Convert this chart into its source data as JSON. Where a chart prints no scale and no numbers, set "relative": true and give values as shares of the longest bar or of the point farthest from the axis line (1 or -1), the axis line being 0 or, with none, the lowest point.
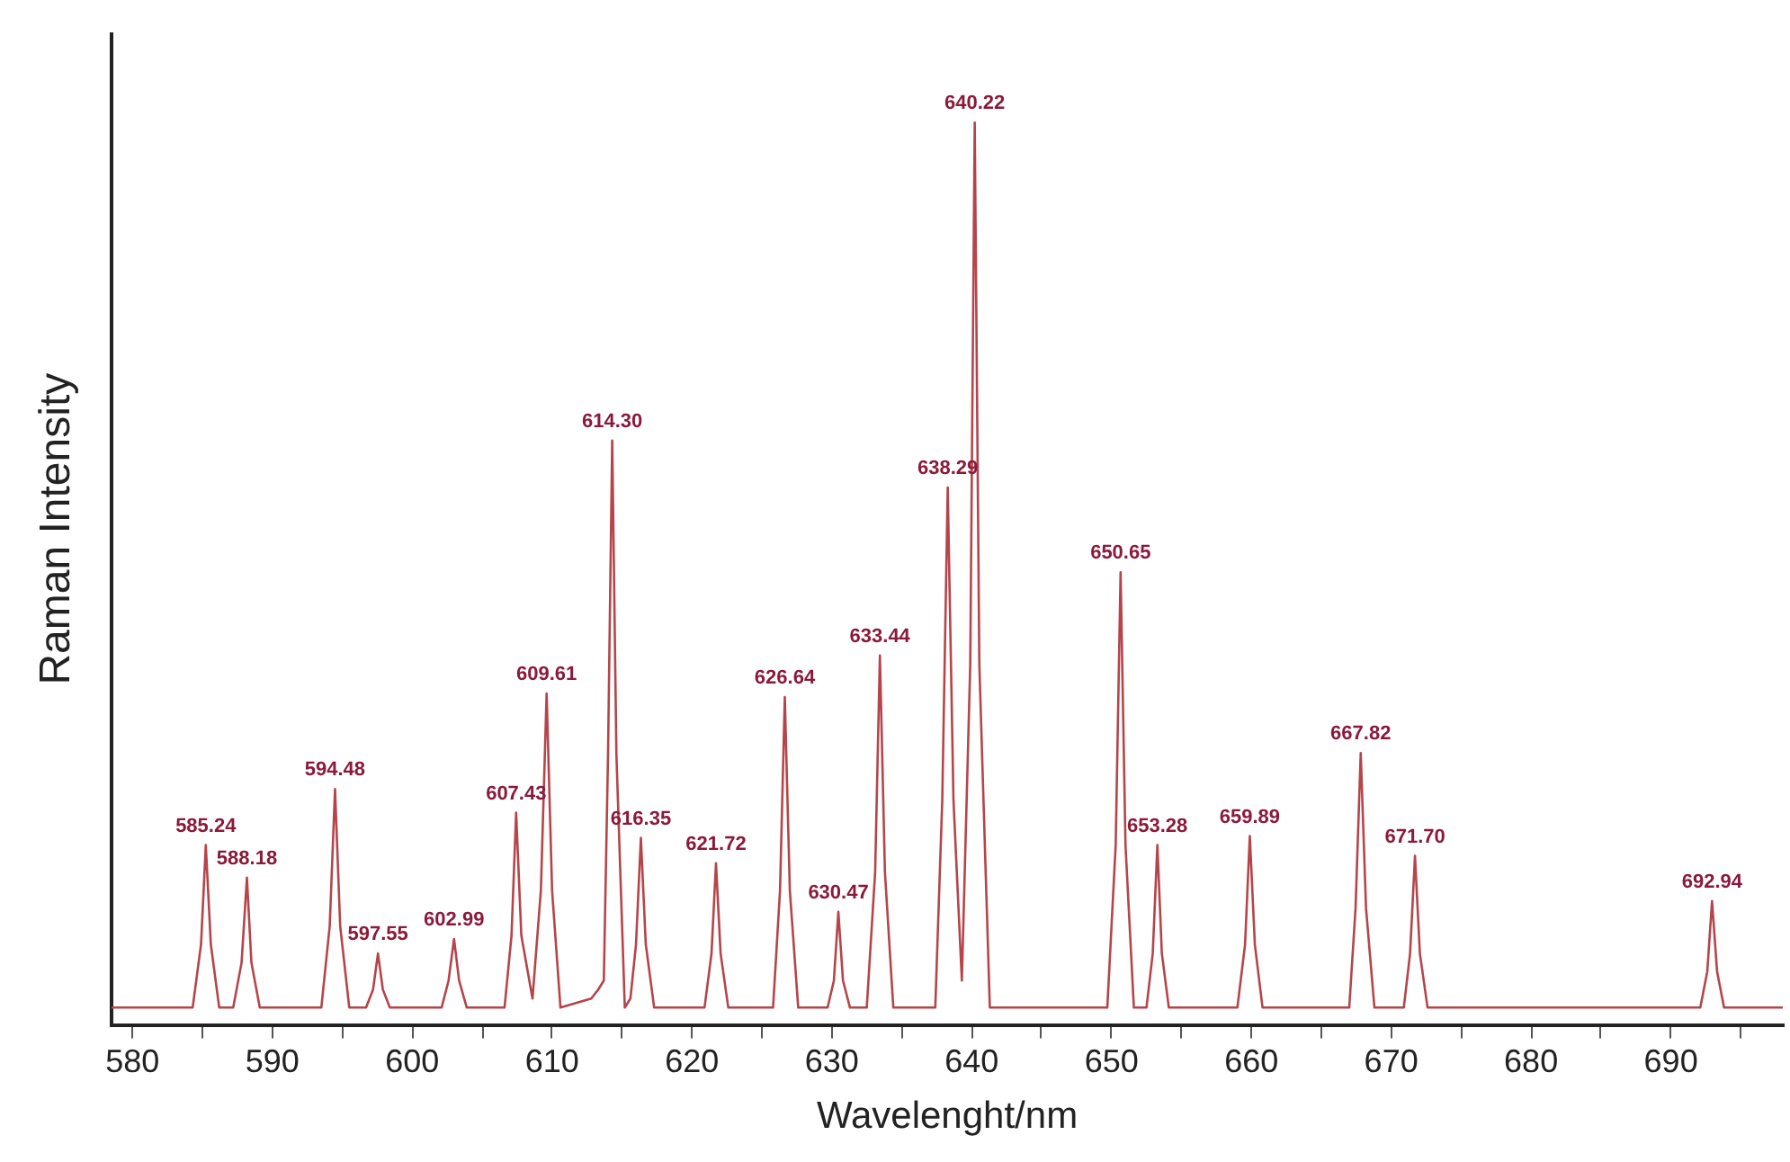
{
  "chart_data": {
    "type": "line",
    "xlabel": "Wavelenght/nm",
    "ylabel": "Raman Intensity",
    "relative": true,
    "legend": false,
    "marker": "none",
    "line_style": "solid",
    "color": "#b5454a",
    "xlim": [
      578.5,
      698
    ],
    "xticks": [
      580,
      {
        "value": 585,
        "label": null
      },
      590,
      {
        "value": 595,
        "label": null
      },
      600,
      {
        "value": 605,
        "label": null
      },
      610,
      {
        "value": 615,
        "label": null
      },
      620,
      {
        "value": 625,
        "label": null
      },
      630,
      {
        "value": 635,
        "label": null
      },
      640,
      {
        "value": 645,
        "label": null
      },
      650,
      {
        "value": 655,
        "label": null
      },
      660,
      {
        "value": 665,
        "label": null
      },
      670,
      {
        "value": 675,
        "label": null
      },
      680,
      {
        "value": 685,
        "label": null
      },
      690,
      {
        "value": 695,
        "label": null
      }
    ],
    "x": [
      578.5,
      584.3,
      584.9,
      585.24,
      585.6,
      586.2,
      587.2,
      587.8,
      588.18,
      588.5,
      589.1,
      593.5,
      594.1,
      594.48,
      594.85,
      595.5,
      596.7,
      597.2,
      597.55,
      597.9,
      598.4,
      602.1,
      602.6,
      602.99,
      603.35,
      603.9,
      606.6,
      607.1,
      607.43,
      607.8,
      608.6,
      609.2,
      609.61,
      610.0,
      610.6,
      612.8,
      613.3,
      613.7,
      614.0,
      614.3,
      614.6,
      615.2,
      615.6,
      616.0,
      616.35,
      616.7,
      617.3,
      620.9,
      621.4,
      621.72,
      622.05,
      622.6,
      625.8,
      626.3,
      626.64,
      627.0,
      627.6,
      629.7,
      630.15,
      630.47,
      630.8,
      631.3,
      632.5,
      633.1,
      633.44,
      633.8,
      634.4,
      637.4,
      637.9,
      638.29,
      638.7,
      639.3,
      639.9,
      640.22,
      640.55,
      641.3,
      649.7,
      650.3,
      650.65,
      651.0,
      651.6,
      652.5,
      652.95,
      653.28,
      653.6,
      654.1,
      659.0,
      659.55,
      659.89,
      660.25,
      660.8,
      667.0,
      667.45,
      667.82,
      668.2,
      668.8,
      670.9,
      671.35,
      671.7,
      672.05,
      672.6,
      692.1,
      692.6,
      692.94,
      693.3,
      693.8,
      698
    ],
    "values": [
      0.02,
      0.02,
      0.09,
      0.2,
      0.09,
      0.02,
      0.02,
      0.07,
      0.164,
      0.07,
      0.02,
      0.02,
      0.11,
      0.262,
      0.11,
      0.02,
      0.02,
      0.04,
      0.08,
      0.04,
      0.02,
      0.02,
      0.05,
      0.096,
      0.05,
      0.02,
      0.02,
      0.1,
      0.236,
      0.1,
      0.03,
      0.15,
      0.368,
      0.15,
      0.02,
      0.03,
      0.04,
      0.05,
      0.3,
      0.648,
      0.3,
      0.02,
      0.03,
      0.09,
      0.208,
      0.09,
      0.02,
      0.02,
      0.08,
      0.18,
      0.08,
      0.02,
      0.02,
      0.15,
      0.364,
      0.15,
      0.02,
      0.02,
      0.05,
      0.126,
      0.05,
      0.02,
      0.02,
      0.17,
      0.41,
      0.17,
      0.02,
      0.02,
      0.25,
      0.596,
      0.25,
      0.05,
      0.4,
      1.0,
      0.4,
      0.02,
      0.02,
      0.2,
      0.502,
      0.2,
      0.02,
      0.02,
      0.08,
      0.2,
      0.08,
      0.02,
      0.02,
      0.09,
      0.21,
      0.09,
      0.02,
      0.02,
      0.13,
      0.302,
      0.13,
      0.02,
      0.02,
      0.08,
      0.188,
      0.08,
      0.02,
      0.02,
      0.06,
      0.138,
      0.06,
      0.02,
      0.02
    ],
    "annotations": [
      {
        "text": "585.24",
        "x": 585.24,
        "y": 0.2
      },
      {
        "text": "588.18",
        "x": 588.18,
        "y": 0.164
      },
      {
        "text": "594.48",
        "x": 594.48,
        "y": 0.262
      },
      {
        "text": "597.55",
        "x": 597.55,
        "y": 0.08
      },
      {
        "text": "602.99",
        "x": 602.99,
        "y": 0.096
      },
      {
        "text": "607.43",
        "x": 607.43,
        "y": 0.236
      },
      {
        "text": "609.61",
        "x": 609.61,
        "y": 0.368
      },
      {
        "text": "614.30",
        "x": 614.3,
        "y": 0.648
      },
      {
        "text": "616.35",
        "x": 616.35,
        "y": 0.208
      },
      {
        "text": "621.72",
        "x": 621.72,
        "y": 0.18
      },
      {
        "text": "626.64",
        "x": 626.64,
        "y": 0.364
      },
      {
        "text": "630.47",
        "x": 630.47,
        "y": 0.126
      },
      {
        "text": "633.44",
        "x": 633.44,
        "y": 0.41
      },
      {
        "text": "638.29",
        "x": 638.29,
        "y": 0.596
      },
      {
        "text": "640.22",
        "x": 640.22,
        "y": 1.0
      },
      {
        "text": "650.65",
        "x": 650.65,
        "y": 0.502
      },
      {
        "text": "653.28",
        "x": 653.28,
        "y": 0.2
      },
      {
        "text": "659.89",
        "x": 659.89,
        "y": 0.21
      },
      {
        "text": "667.82",
        "x": 667.82,
        "y": 0.302
      },
      {
        "text": "671.70",
        "x": 671.7,
        "y": 0.188
      },
      {
        "text": "692.94",
        "x": 692.94,
        "y": 0.138
      }
    ]
  }
}
